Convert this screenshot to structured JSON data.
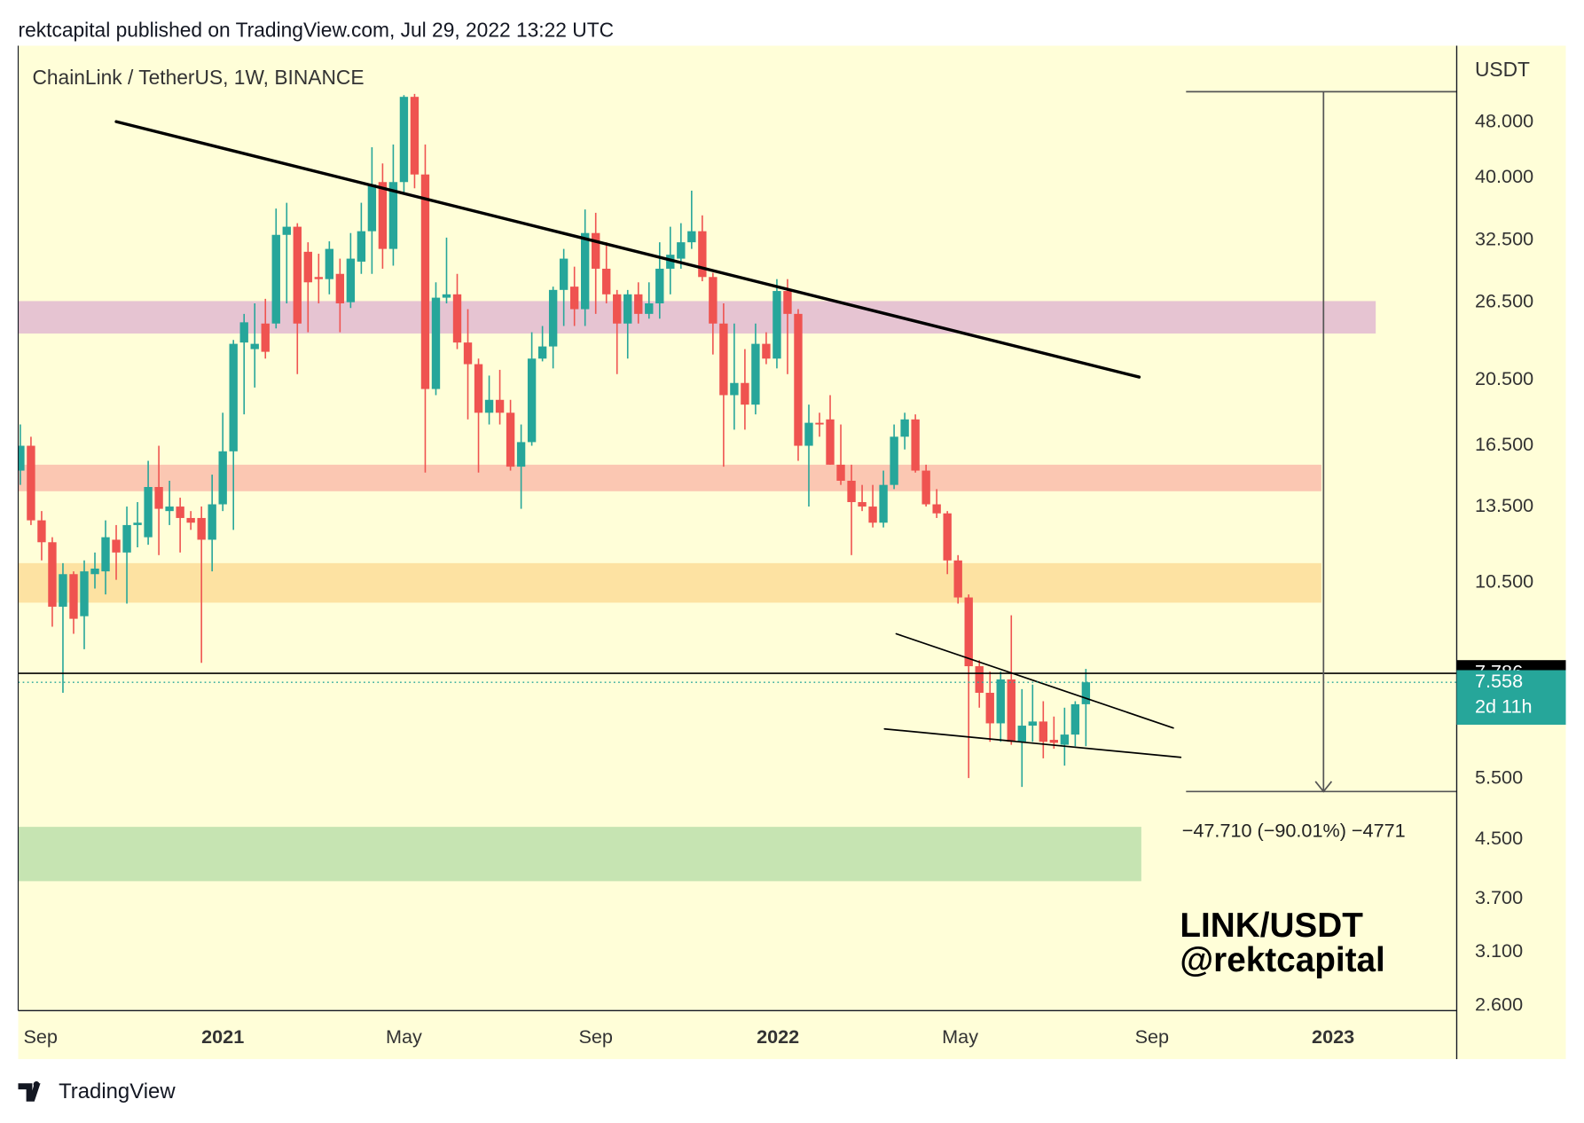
{
  "header": "rektcapital published on TradingView.com, Jul 29, 2022 13:22 UTC",
  "footer": "TradingView",
  "chart_data": {
    "type": "candlestick",
    "title": "ChainLink / TetherUS, 1W, BINANCE",
    "y_axis_label": "USDT",
    "log_scale": true,
    "grid": false,
    "up_color": "#26a69a",
    "down_color": "#ef5350",
    "ylim": [
      2.557,
      61.8
    ],
    "yticks": [
      {
        "value": 48,
        "label": "48.000"
      },
      {
        "value": 40,
        "label": "40.000"
      },
      {
        "value": 32.5,
        "label": "32.500"
      },
      {
        "value": 26.5,
        "label": "26.500"
      },
      {
        "value": 20.5,
        "label": "20.500"
      },
      {
        "value": 16.5,
        "label": "16.500"
      },
      {
        "value": 13.5,
        "label": "13.500"
      },
      {
        "value": 10.5,
        "label": "10.500"
      },
      {
        "value": 5.5,
        "label": "5.500"
      },
      {
        "value": 4.5,
        "label": "4.500"
      },
      {
        "value": 3.7,
        "label": "3.700"
      },
      {
        "value": 3.1,
        "label": "3.100"
      },
      {
        "value": 2.6,
        "label": "2.600"
      }
    ],
    "xlim": [
      -0.2,
      134.8
    ],
    "xticks": [
      {
        "value": 1.9,
        "label": "Sep"
      },
      {
        "value": 19.0,
        "label": "2021"
      },
      {
        "value": 36.0,
        "label": "May"
      },
      {
        "value": 54.0,
        "label": "Sep"
      },
      {
        "value": 71.1,
        "label": "2022"
      },
      {
        "value": 88.2,
        "label": "May"
      },
      {
        "value": 106.2,
        "label": "Sep"
      },
      {
        "value": 123.2,
        "label": "2023"
      }
    ],
    "open": [
      15.2,
      16.5,
      12.9,
      12.0,
      9.7,
      10.8,
      9.4,
      10.8,
      10.9,
      12.1,
      11.6,
      12.7,
      12.2,
      14.4,
      13.3,
      13.5,
      13.0,
      13.0,
      12.1,
      13.6,
      16.2,
      23.2,
      22.7,
      24.7,
      24.7,
      33.1,
      34.0,
      31.3,
      28.8,
      28.6,
      29.1,
      26.5,
      30.3,
      33.5,
      39.4,
      31.6,
      39.4,
      52.2,
      40.4,
      19.9,
      26.9,
      27.2,
      23.2,
      21.6,
      18.4,
      19.2,
      18.4,
      15.4,
      16.7,
      22.0,
      22.9,
      27.6,
      27.9,
      25.9,
      33.3,
      29.6,
      27.2,
      24.7,
      27.2,
      25.5,
      26.4,
      29.6,
      30.6,
      32.3,
      33.5,
      28.8,
      24.7,
      19.5,
      20.3,
      18.9,
      23.1,
      22.0,
      27.5,
      25.5,
      16.5,
      17.8,
      18.0,
      15.5,
      14.7,
      13.7,
      13.5,
      12.8,
      14.5,
      17.0,
      18.0,
      15.2,
      13.6,
      13.2,
      11.3,
      10.0,
      7.97,
      7.3,
      6.6,
      7.63,
      6.21,
      6.55,
      6.64,
      6.25,
      6.15,
      6.36,
      7.03
    ],
    "high": [
      17.7,
      17.0,
      13.3,
      12.2,
      11.2,
      10.9,
      11.3,
      11.6,
      12.9,
      12.7,
      13.5,
      13.7,
      15.7,
      16.5,
      14.7,
      13.9,
      13.3,
      13.5,
      15.0,
      18.4,
      23.4,
      25.5,
      26.4,
      26.8,
      36.1,
      36.8,
      34.4,
      32.3,
      31.1,
      32.4,
      30.6,
      33.3,
      36.8,
      44.2,
      41.9,
      44.6,
      52.5,
      52.7,
      44.6,
      28.3,
      32.8,
      29.1,
      25.9,
      22.0,
      20.8,
      21.2,
      19.2,
      17.7,
      24.0,
      24.5,
      27.9,
      31.6,
      29.8,
      36.0,
      35.6,
      32.3,
      27.6,
      27.6,
      28.3,
      28.3,
      32.3,
      34.0,
      34.4,
      38.3,
      35.3,
      29.2,
      26.4,
      24.7,
      22.7,
      24.7,
      24.0,
      28.6,
      28.6,
      25.9,
      18.9,
      18.4,
      19.5,
      17.7,
      15.5,
      14.5,
      14.5,
      15.2,
      17.7,
      18.4,
      18.3,
      15.5,
      14.3,
      13.3,
      11.5,
      10.1,
      8.13,
      7.83,
      7.83,
      9.43,
      7.39,
      7.5,
      7.1,
      6.75,
      6.95,
      7.1,
      7.9
    ],
    "low": [
      14.5,
      12.7,
      11.3,
      9.08,
      7.3,
      8.87,
      8.43,
      10.3,
      10.1,
      10.6,
      9.8,
      11.8,
      11.9,
      11.5,
      12.7,
      11.6,
      12.5,
      8.06,
      10.9,
      13.3,
      12.5,
      18.3,
      20.0,
      22.0,
      24.3,
      26.4,
      20.9,
      24.0,
      26.4,
      27.2,
      24.0,
      26.0,
      29.1,
      29.1,
      29.6,
      29.9,
      38.1,
      38.6,
      15.1,
      19.5,
      26.4,
      22.7,
      18.0,
      15.1,
      17.7,
      17.7,
      15.2,
      13.4,
      16.5,
      21.8,
      21.3,
      24.5,
      24.5,
      24.5,
      25.5,
      26.4,
      20.9,
      22.0,
      24.7,
      25.1,
      25.1,
      27.2,
      29.6,
      31.6,
      28.4,
      22.3,
      15.4,
      17.4,
      17.4,
      18.3,
      21.6,
      21.3,
      20.9,
      15.7,
      13.5,
      17.0,
      15.5,
      14.5,
      11.5,
      13.3,
      12.6,
      12.6,
      14.3,
      16.3,
      15.1,
      13.5,
      13.0,
      10.8,
      9.8,
      5.51,
      6.95,
      6.21,
      6.21,
      6.15,
      5.35,
      6.21,
      5.88,
      6.07,
      5.74,
      6.12,
      6.12
    ],
    "close": [
      16.5,
      12.9,
      12.0,
      9.7,
      10.8,
      9.32,
      10.9,
      11.0,
      12.2,
      11.6,
      12.7,
      12.8,
      14.4,
      13.4,
      13.5,
      13.0,
      12.8,
      12.1,
      13.6,
      16.2,
      23.1,
      24.8,
      23.1,
      22.5,
      33.1,
      34.0,
      24.7,
      28.3,
      28.6,
      31.6,
      26.4,
      30.6,
      33.5,
      39.1,
      31.6,
      39.4,
      52.2,
      40.4,
      19.9,
      26.9,
      27.2,
      23.2,
      21.6,
      18.4,
      19.2,
      18.4,
      15.4,
      16.7,
      22.0,
      22.9,
      27.6,
      30.6,
      25.9,
      33.3,
      29.6,
      27.2,
      24.7,
      27.2,
      25.5,
      26.4,
      29.6,
      31.0,
      32.3,
      33.5,
      28.8,
      24.7,
      19.5,
      20.3,
      18.9,
      23.1,
      22.0,
      27.5,
      25.5,
      16.5,
      17.8,
      17.7,
      15.5,
      14.7,
      13.7,
      13.5,
      12.8,
      14.5,
      17.0,
      18.0,
      15.2,
      13.6,
      13.2,
      11.3,
      10.0,
      7.97,
      7.3,
      6.6,
      7.63,
      6.21,
      6.55,
      6.64,
      6.21,
      6.19,
      6.36,
      7.03,
      7.558
    ],
    "zones": [
      {
        "from": 23.9,
        "to": 26.6,
        "x_end": 127.2,
        "color": "#e6c4d2"
      },
      {
        "from": 14.2,
        "to": 15.5,
        "x_end": 122.1,
        "color": "#fbc7b2"
      },
      {
        "from": 9.83,
        "to": 11.2,
        "x_end": 122.1,
        "color": "#fde2a2"
      },
      {
        "from": 3.92,
        "to": 4.69,
        "x_end": 105.2,
        "color": "#c6e4b2"
      }
    ],
    "trendlines": [
      {
        "x": [
          9.0,
          105.0
        ],
        "y": [
          48.1,
          20.7
        ],
        "width": 3
      },
      {
        "x": [
          82.2,
          108.2
        ],
        "y": [
          8.87,
          6.5
        ],
        "width": 1.5
      },
      {
        "x": [
          81.1,
          108.9
        ],
        "y": [
          6.48,
          5.9
        ],
        "width": 1.5
      }
    ],
    "measure": {
      "x_start": 109.4,
      "x_mid": 122.3,
      "top": 53.1,
      "bottom": 5.27,
      "label": "−47.710 (−90.01%) −4771"
    },
    "hline": 7.786,
    "last_price": 7.558,
    "countdown": "2d 11h",
    "watermark": [
      "LINK/USDT",
      "@rektcapital"
    ]
  }
}
